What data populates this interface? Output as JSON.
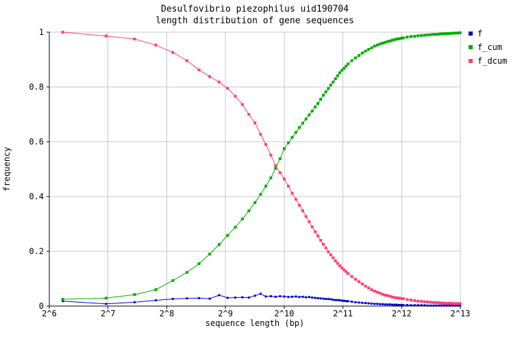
{
  "title": {
    "line1": "Desulfovibrio piezophilus uid190704",
    "line2": "length distribution of gene sequences"
  },
  "axes": {
    "x_label": "sequence length (bp)",
    "y_label": "frequency",
    "x_ticks": [
      "2^6",
      "2^7",
      "2^8",
      "2^9",
      "2^10",
      "2^11",
      "2^12",
      "2^13"
    ],
    "y_ticks": [
      "0",
      "0.2",
      "0.4",
      "0.6",
      "0.8",
      "1"
    ]
  },
  "legend": {
    "items": [
      {
        "label": "f",
        "color": "#0000cc"
      },
      {
        "label": "f_cum",
        "color": "#00ad00"
      },
      {
        "label": "f_dcum",
        "color": "#ff4070"
      }
    ]
  },
  "colors": {
    "grid": "#c8c8c8",
    "axis": "#000000",
    "background": "#ffffff",
    "text": "#000000"
  },
  "chart_data": {
    "type": "line",
    "title": "Desulfovibrio piezophilus uid190704 - length distribution of gene sequences",
    "xlabel": "sequence length (bp)",
    "ylabel": "frequency",
    "x_scale": "log2",
    "xlim": [
      64,
      8192
    ],
    "ylim": [
      0,
      1
    ],
    "grid": true,
    "legend_position": "outside-top-right",
    "marker": "filled-square",
    "x_bp": [
      75,
      125,
      175,
      225,
      275,
      325,
      375,
      425,
      475,
      525,
      575,
      625,
      675,
      725,
      775,
      825,
      875,
      925,
      975,
      1025,
      1075,
      1125,
      1175,
      1225,
      1275,
      1325,
      1375,
      1425,
      1475,
      1525,
      1575,
      1625,
      1675,
      1725,
      1775,
      1825,
      1875,
      1925,
      1975,
      2025,
      2075,
      2125,
      2175,
      2275,
      2375,
      2475,
      2575,
      2675,
      2775,
      2875,
      2975,
      3075,
      3175,
      3275,
      3375,
      3475,
      3575,
      3675,
      3775,
      3875,
      3975,
      4075,
      4175,
      4375,
      4575,
      4775,
      4975,
      5175,
      5375,
      5575,
      5775,
      5975,
      6175,
      6375,
      6575,
      6775,
      6975,
      7175,
      7375,
      7575,
      7775,
      7975,
      8175
    ],
    "series": [
      {
        "name": "f",
        "color": "#0000cc",
        "values": [
          0.018,
          0.008,
          0.014,
          0.021,
          0.026,
          0.028,
          0.029,
          0.027,
          0.04,
          0.03,
          0.031,
          0.032,
          0.031,
          0.038,
          0.045,
          0.035,
          0.036,
          0.034,
          0.036,
          0.035,
          0.033,
          0.034,
          0.035,
          0.033,
          0.034,
          0.032,
          0.033,
          0.031,
          0.03,
          0.029,
          0.028,
          0.027,
          0.026,
          0.026,
          0.025,
          0.023,
          0.022,
          0.022,
          0.021,
          0.02,
          0.019,
          0.018,
          0.018,
          0.016,
          0.014,
          0.013,
          0.012,
          0.011,
          0.01,
          0.009,
          0.008,
          0.008,
          0.007,
          0.007,
          0.006,
          0.006,
          0.006,
          0.005,
          0.005,
          0.005,
          0.004,
          0.004,
          0.004,
          0.004,
          0.003,
          0.003,
          0.003,
          0.003,
          0.003,
          0.002,
          0.002,
          0.002,
          0.002,
          0.002,
          0.002,
          0.002,
          0.002,
          0.002,
          0.002,
          0.002,
          0.002,
          0.002,
          0.002
        ]
      },
      {
        "name": "f_cum",
        "color": "#00ad00",
        "values": [
          0.025,
          0.029,
          0.042,
          0.06,
          0.093,
          0.123,
          0.155,
          0.19,
          0.225,
          0.258,
          0.288,
          0.318,
          0.348,
          0.378,
          0.408,
          0.438,
          0.468,
          0.503,
          0.538,
          0.575,
          0.596,
          0.616,
          0.634,
          0.652,
          0.668,
          0.683,
          0.698,
          0.712,
          0.727,
          0.74,
          0.755,
          0.77,
          0.782,
          0.794,
          0.807,
          0.818,
          0.83,
          0.841,
          0.852,
          0.861,
          0.868,
          0.876,
          0.884,
          0.896,
          0.906,
          0.915,
          0.924,
          0.931,
          0.937,
          0.943,
          0.949,
          0.953,
          0.957,
          0.96,
          0.963,
          0.966,
          0.968,
          0.971,
          0.973,
          0.975,
          0.976,
          0.978,
          0.979,
          0.982,
          0.984,
          0.985,
          0.987,
          0.988,
          0.989,
          0.99,
          0.991,
          0.992,
          0.992,
          0.993,
          0.994,
          0.994,
          0.995,
          0.995,
          0.996,
          0.996,
          0.997,
          0.997,
          0.998
        ]
      },
      {
        "name": "f_dcum",
        "color": "#ff4070",
        "values": [
          1.0,
          0.986,
          0.975,
          0.953,
          0.926,
          0.896,
          0.862,
          0.838,
          0.818,
          0.795,
          0.766,
          0.736,
          0.7,
          0.669,
          0.627,
          0.59,
          0.551,
          0.513,
          0.487,
          0.464,
          0.438,
          0.412,
          0.39,
          0.368,
          0.348,
          0.327,
          0.308,
          0.289,
          0.272,
          0.256,
          0.24,
          0.226,
          0.212,
          0.198,
          0.187,
          0.176,
          0.165,
          0.156,
          0.147,
          0.139,
          0.132,
          0.126,
          0.119,
          0.108,
          0.098,
          0.089,
          0.081,
          0.073,
          0.066,
          0.06,
          0.055,
          0.051,
          0.047,
          0.043,
          0.04,
          0.038,
          0.036,
          0.033,
          0.031,
          0.03,
          0.029,
          0.028,
          0.027,
          0.024,
          0.022,
          0.02,
          0.018,
          0.017,
          0.016,
          0.015,
          0.014,
          0.013,
          0.013,
          0.012,
          0.011,
          0.011,
          0.01,
          0.01,
          0.01,
          0.009,
          0.009,
          0.009,
          0.009
        ]
      }
    ]
  }
}
